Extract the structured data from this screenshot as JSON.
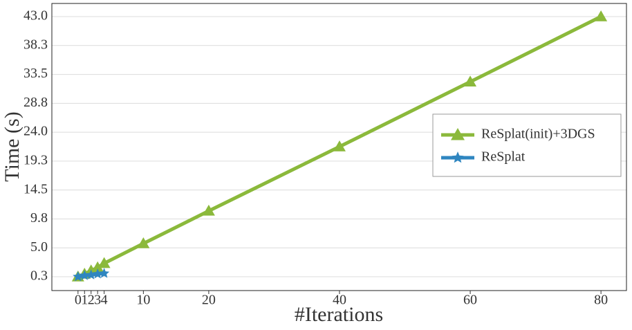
{
  "chart_data": {
    "type": "line",
    "xlabel": "#Iterations",
    "ylabel": "Time (s)",
    "series": [
      {
        "name": "ReSplat(init)+3DGS",
        "color": "#8bb93b",
        "marker": "triangle",
        "x": [
          0,
          1,
          2,
          3,
          4,
          10,
          20,
          40,
          60,
          80
        ],
        "values": [
          0.3,
          0.75,
          1.3,
          1.8,
          2.5,
          5.75,
          11.1,
          21.65,
          32.3,
          43.0
        ]
      },
      {
        "name": "ReSplat",
        "color": "#2f86c0",
        "marker": "star",
        "x": [
          0,
          1,
          2,
          3,
          4
        ],
        "values": [
          0.3,
          0.5,
          0.6,
          0.75,
          0.85
        ]
      }
    ],
    "xlim": [
      -4,
      83.9
    ],
    "ylim": [
      -1.97,
      45.16
    ],
    "xticks": [
      0,
      1,
      2,
      3,
      4,
      10,
      20,
      40,
      60,
      80
    ],
    "yticks": [
      0.3,
      {
        "value": 5.044,
        "label": "5.0"
      },
      {
        "value": 9.789,
        "label": "9.8"
      },
      {
        "value": 14.533,
        "label": "14.5"
      },
      {
        "value": 19.278,
        "label": "19.3"
      },
      {
        "value": 24.022,
        "label": "24.0"
      },
      {
        "value": 28.767,
        "label": "28.8"
      },
      {
        "value": 33.511,
        "label": "33.5"
      },
      {
        "value": 38.256,
        "label": "38.3"
      },
      {
        "value": 43.0,
        "label": "43.0"
      }
    ],
    "grid": true,
    "legend": "right"
  }
}
